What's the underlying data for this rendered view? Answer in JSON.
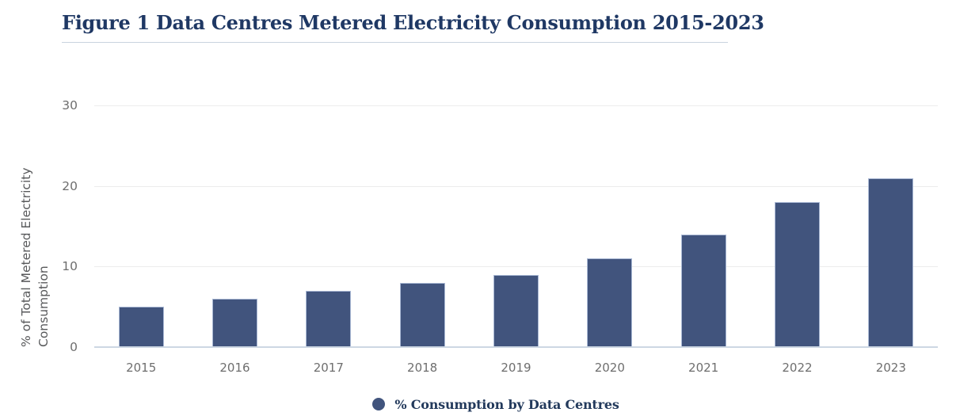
{
  "header": {
    "title": "Figure 1 Data Centres Metered Electricity Consumption 2015-2023"
  },
  "chart_data": {
    "type": "bar",
    "title": "Figure 1 Data Centres Metered Electricity Consumption 2015-2023",
    "categories": [
      "2015",
      "2016",
      "2017",
      "2018",
      "2019",
      "2020",
      "2021",
      "2022",
      "2023"
    ],
    "values": [
      5,
      6,
      7,
      8,
      9,
      11,
      14,
      18,
      21
    ],
    "series_name": "% Consumption by Data Centres",
    "xlabel": "",
    "ylabel_lines": [
      "% of Total Metered Electricity",
      "Consumption"
    ],
    "ylim": [
      0,
      30
    ],
    "yticks": [
      0,
      10,
      20,
      30
    ],
    "grid": "horizontal",
    "legend_position": "bottom-center",
    "colors": {
      "bar_fill": "#41547D",
      "bar_stroke": "#A9B8D4",
      "title_text": "#1F3864",
      "legend_text": "#233A5C",
      "axis_text": "#6E6E6E",
      "y_axis_title_text": "#58595B",
      "gridline": "#ECECEC",
      "baseline": "#CDD7E3",
      "title_underline": "#C9D3DF"
    }
  },
  "legend": {
    "label": "% Consumption by Data Centres"
  }
}
